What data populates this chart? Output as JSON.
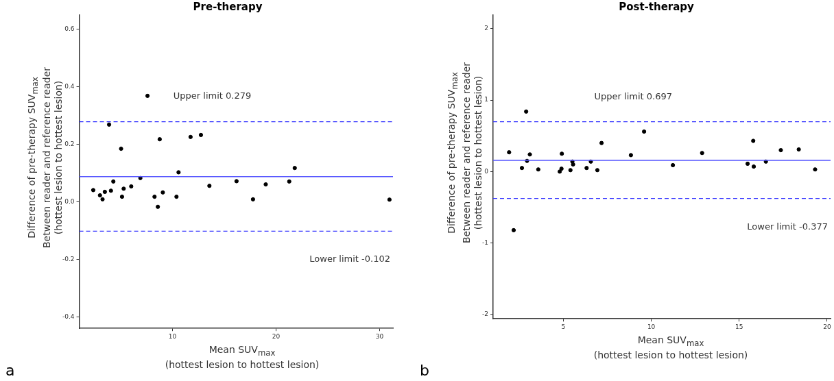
{
  "chart_data": [
    {
      "type": "scatter",
      "title": "Pre-therapy",
      "xlabel": "Mean SUV$_{max}$\n(hottest lesion to hottest lesion)",
      "ylabel": "Difference of pre-therapy SUV$_{max}$\nBetween reader and reference reader\n(hottest lesion to hottest lesion)",
      "annotations": [
        "a"
      ],
      "x": [
        2.35,
        3.0,
        3.25,
        3.47,
        3.88,
        4.06,
        4.29,
        5.04,
        5.13,
        5.29,
        6.02,
        6.9,
        7.59,
        8.27,
        8.59,
        8.77,
        9.07,
        10.39,
        10.59,
        11.75,
        12.75,
        13.57,
        16.19,
        17.78,
        19.01,
        21.28,
        21.81,
        30.96
      ],
      "series": [
        {
          "color": "#000000",
          "values": [
            0.041,
            0.023,
            0.009,
            0.035,
            0.269,
            0.039,
            0.071,
            0.185,
            0.018,
            0.046,
            0.054,
            0.083,
            0.369,
            0.018,
            -0.017,
            0.218,
            0.033,
            0.018,
            0.103,
            0.226,
            0.233,
            0.056,
            0.072,
            0.009,
            0.061,
            0.071,
            0.118,
            0.008
          ]
        }
      ],
      "xlim": [
        1,
        31.3
      ],
      "xticks": [
        10,
        20,
        30
      ],
      "ylim": [
        -0.44,
        0.65
      ],
      "yticks": [
        {
          "value": -0.4,
          "label": "-0.4"
        },
        {
          "value": -0.2,
          "label": "-0.2"
        },
        {
          "value": 0,
          "label": "0.0"
        },
        {
          "value": 0.2,
          "label": "0.2"
        },
        {
          "value": 0.4,
          "label": "0.4"
        },
        {
          "value": 0.6,
          "label": "0.6"
        }
      ],
      "ref_lines": [
        {
          "axis": "y",
          "value": 0.279,
          "label": "Upper limit 0.279",
          "color": "#3333ff",
          "line_style": "dashed"
        },
        {
          "axis": "y",
          "value": 0.088,
          "color": "#5555ff",
          "line_style": "solid"
        },
        {
          "axis": "y",
          "value": -0.102,
          "label": "Lower limit -0.102",
          "color": "#3333ff",
          "line_style": "dashed"
        }
      ],
      "grid": false,
      "legend": false,
      "marker": "circle"
    },
    {
      "type": "scatter",
      "title": "Post-therapy",
      "xlabel": "Mean SUV$_{max}$\n(hottest lesion to hottest lesion)",
      "ylabel": "Difference of pre-therapy SUV$_{max}$\nBetween reader and reference reader\n(hottest lesion to hottest lesion)",
      "annotations": [
        "b"
      ],
      "x": [
        1.91,
        2.17,
        2.64,
        2.88,
        2.93,
        3.09,
        3.57,
        4.79,
        4.89,
        4.91,
        5.4,
        5.51,
        5.55,
        6.32,
        6.56,
        6.93,
        7.17,
        8.84,
        9.59,
        11.23,
        12.89,
        15.48,
        15.8,
        15.83,
        16.52,
        17.37,
        18.39,
        19.32
      ],
      "series": [
        {
          "color": "#000000",
          "values": [
            0.27,
            -0.82,
            0.05,
            0.84,
            0.15,
            0.24,
            0.03,
            0.0,
            0.04,
            0.25,
            0.02,
            0.14,
            0.1,
            0.05,
            0.14,
            0.02,
            0.4,
            0.23,
            0.56,
            0.09,
            0.26,
            0.11,
            0.43,
            0.07,
            0.14,
            0.3,
            0.31,
            0.03
          ]
        }
      ],
      "xlim": [
        1,
        20.2
      ],
      "xticks": [
        5,
        10,
        15,
        20
      ],
      "ylim": [
        -2.06,
        2.19
      ],
      "yticks": [
        -2,
        -1,
        0,
        1,
        2
      ],
      "ref_lines": [
        {
          "axis": "y",
          "value": 0.697,
          "label": "Upper limit 0.697",
          "color": "#3333ff",
          "line_style": "dashed"
        },
        {
          "axis": "y",
          "value": 0.157,
          "color": "#5555ff",
          "line_style": "solid"
        },
        {
          "axis": "y",
          "value": -0.377,
          "label": "Lower limit -0.377",
          "color": "#3333ff",
          "line_style": "dashed"
        }
      ],
      "grid": false,
      "legend": false,
      "marker": "circle"
    }
  ]
}
